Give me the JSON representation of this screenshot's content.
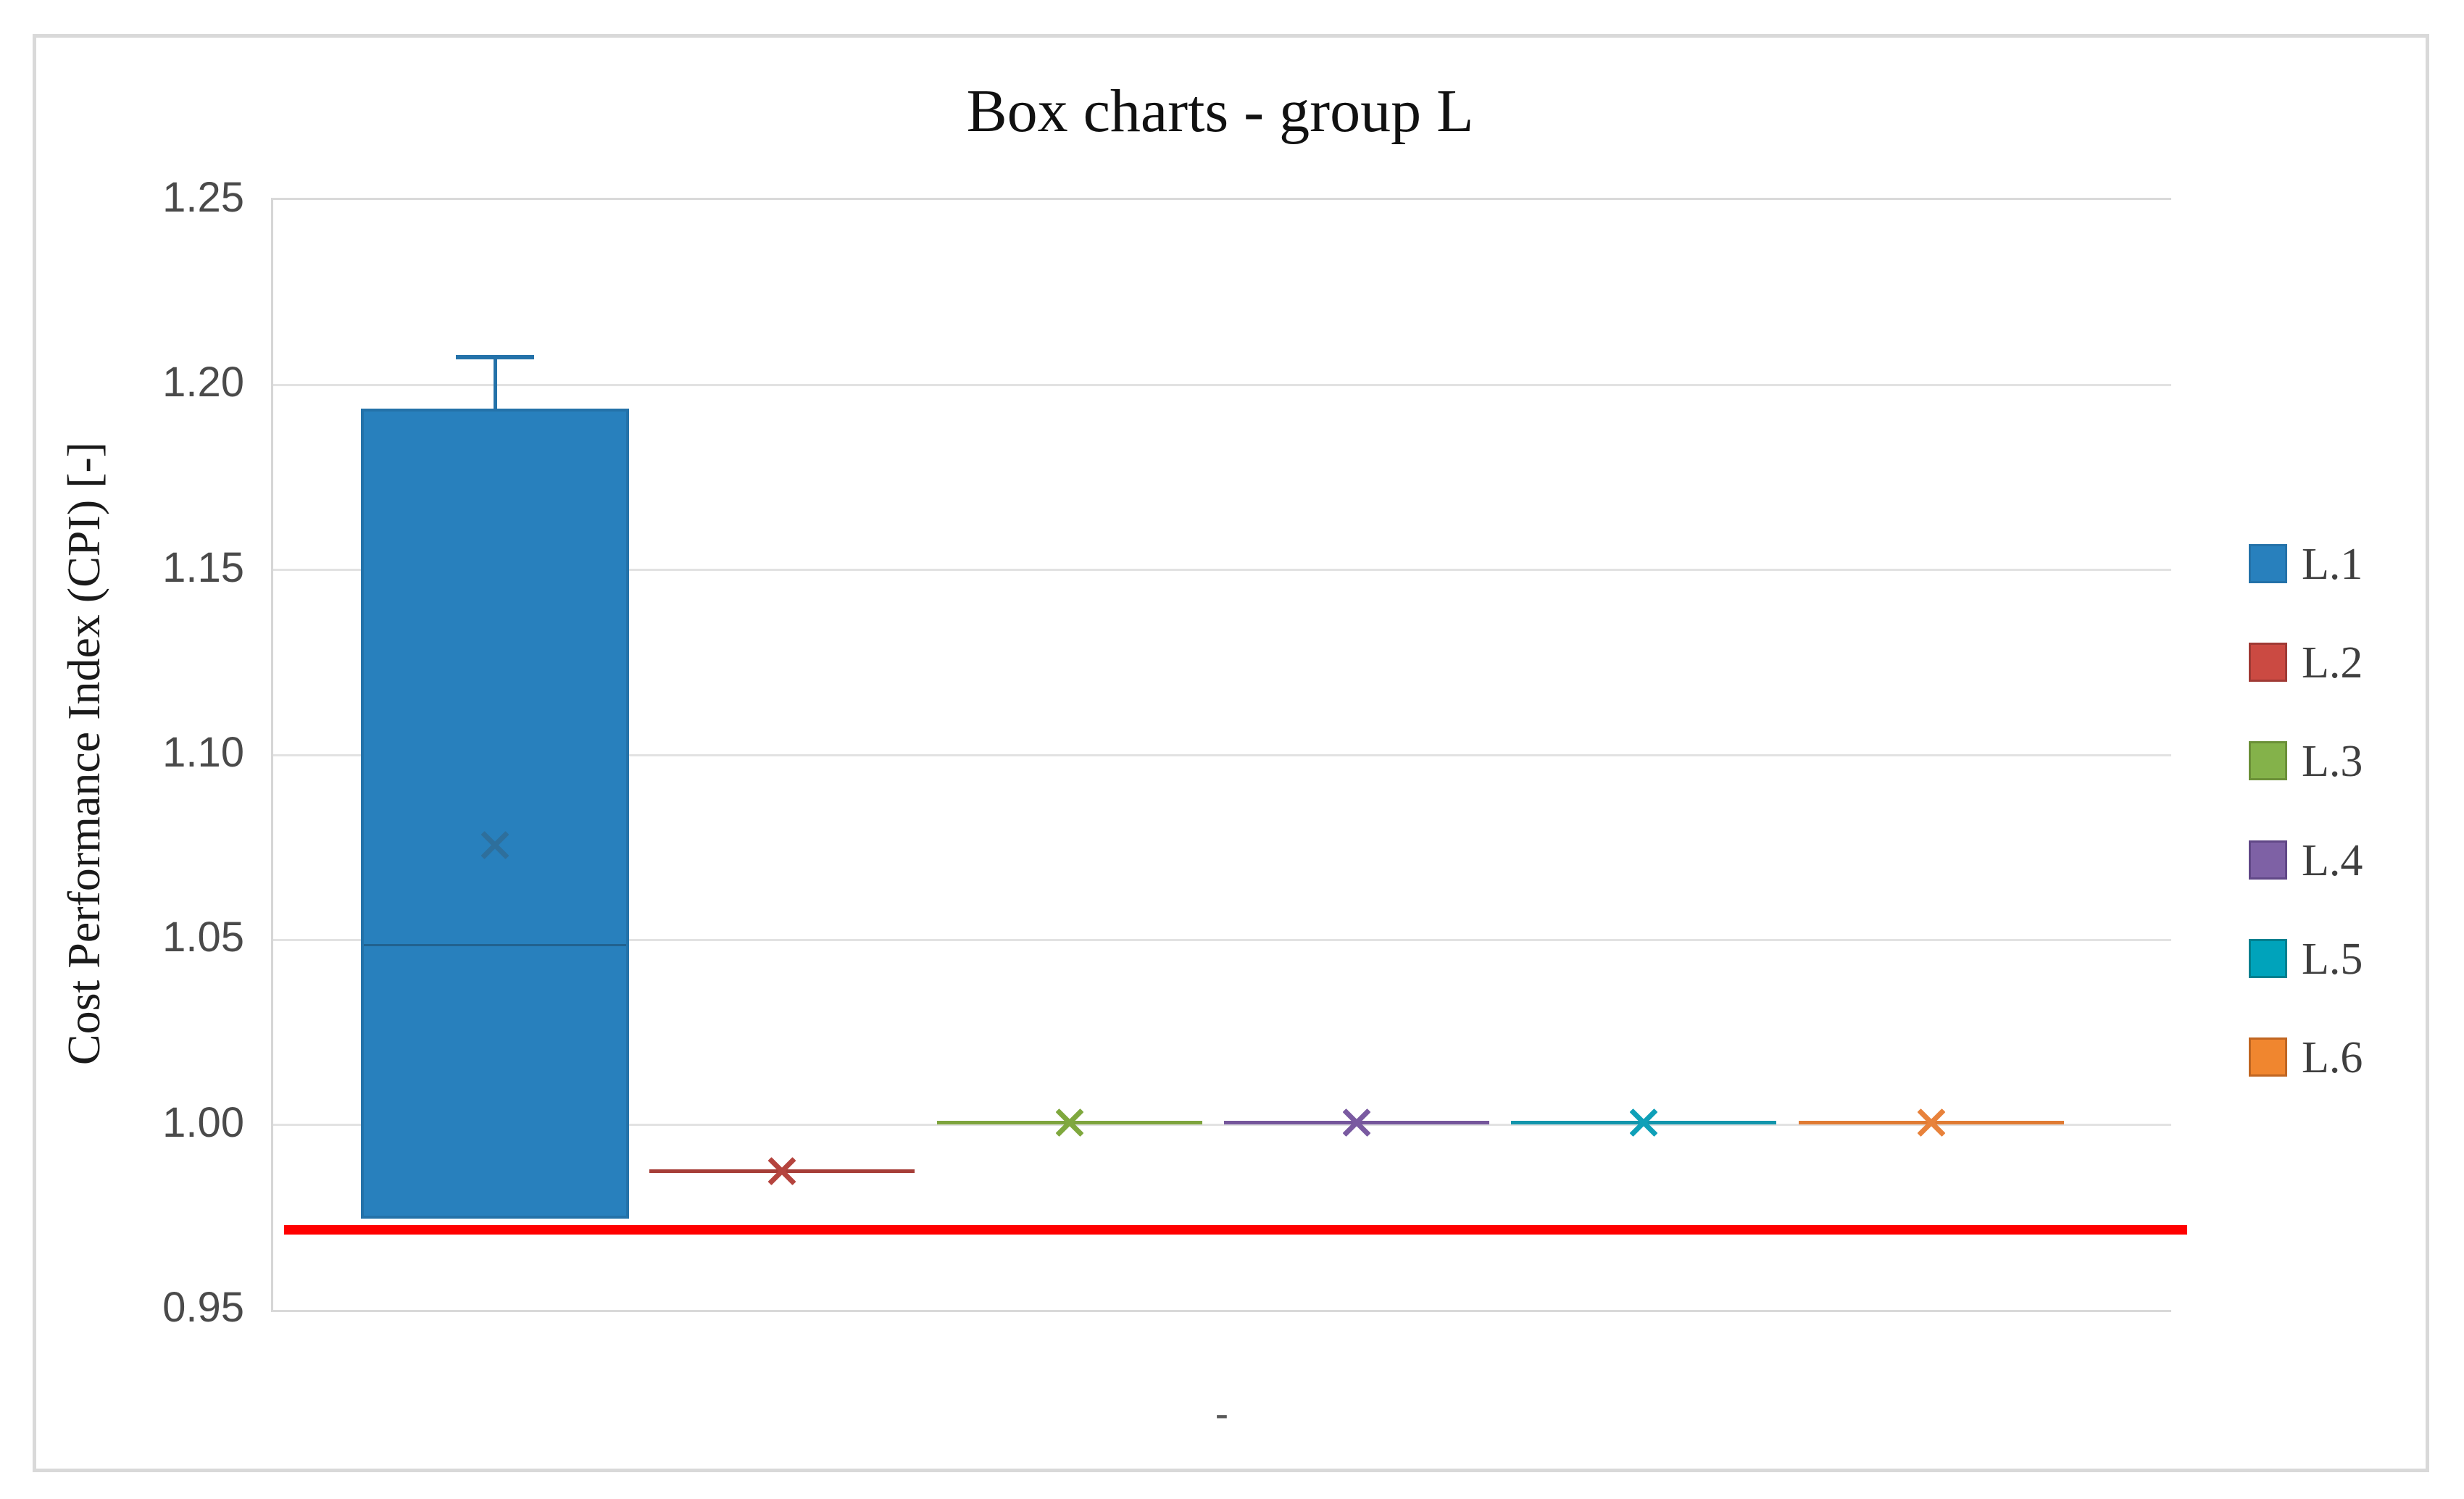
{
  "chart_data": {
    "type": "box",
    "title": "Box charts - group L",
    "ylabel": "Cost Performance Index (CPI) [-]",
    "xlabel": "-",
    "y_axis": {
      "min": 0.95,
      "max": 1.25,
      "tick_step": 0.05,
      "ticks": [
        1.25,
        1.2,
        1.15,
        1.1,
        1.05,
        1.0,
        0.95
      ],
      "tick_labels": [
        "1.25",
        "1.20",
        "1.15",
        "1.10",
        "1.05",
        "1.00",
        "0.95"
      ],
      "grid": true
    },
    "legend_position": "right",
    "reference_line": {
      "value": 0.971,
      "color": "#ff0000"
    },
    "series": [
      {
        "name": "L.1",
        "fill": "#2880bd",
        "border": "#2472a9",
        "line": "#21628f",
        "marker": "#2e6f9c",
        "q1": 0.974,
        "median": 1.048,
        "q3": 1.193,
        "whisker_high": 1.207,
        "mean": 1.075
      },
      {
        "name": "L.2",
        "fill": "#cb4a42",
        "border": "#a03a35",
        "line": "#a63e38",
        "marker": "#b5443e",
        "q1": 0.987,
        "median": 0.987,
        "q3": 0.987,
        "mean": 0.987
      },
      {
        "name": "L.3",
        "fill": "#84b24a",
        "border": "#6b9038",
        "line": "#7ea43d",
        "marker": "#7fa83e",
        "q1": 1.0,
        "median": 1.0,
        "q3": 1.0,
        "mean": 1.0
      },
      {
        "name": "L.4",
        "fill": "#7e61a5",
        "border": "#614887",
        "line": "#75569b",
        "marker": "#7a5aa1",
        "q1": 1.0,
        "median": 1.0,
        "q3": 1.0,
        "mean": 1.0
      },
      {
        "name": "L.5",
        "fill": "#00a3bb",
        "border": "#00808f",
        "line": "#1295ac",
        "marker": "#0fa0b8",
        "q1": 1.0,
        "median": 1.0,
        "q3": 1.0,
        "mean": 1.0
      },
      {
        "name": "L.6",
        "fill": "#f0862f",
        "border": "#c06622",
        "line": "#e07b33",
        "marker": "#e8823b",
        "q1": 1.0,
        "median": 1.0,
        "q3": 1.0,
        "mean": 1.0
      }
    ]
  }
}
